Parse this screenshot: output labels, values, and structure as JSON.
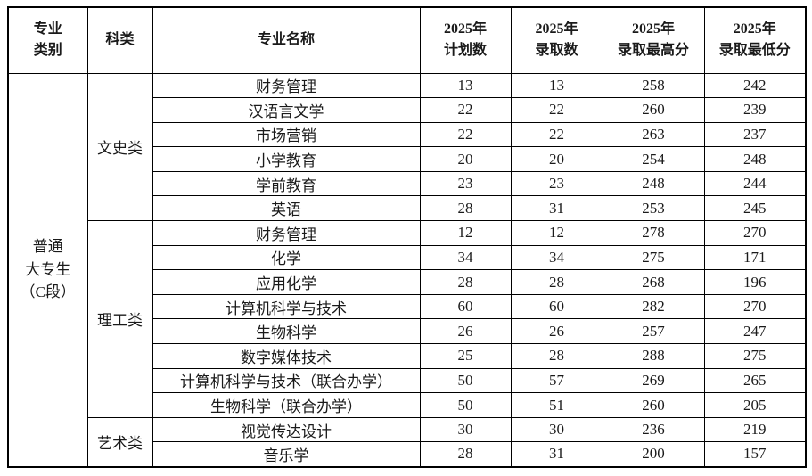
{
  "table": {
    "headers": {
      "category": "专业\n类别",
      "subject": "科类",
      "major": "专业名称",
      "plan": "2025年\n计划数",
      "admitted": "2025年\n录取数",
      "max_score": "2025年\n录取最高分",
      "min_score": "2025年\n录取最低分"
    },
    "category_cell": "普通\n大专生\n（C段）",
    "groups": [
      {
        "subject": "文史类",
        "rows": [
          {
            "major": "财务管理",
            "plan": "13",
            "admitted": "13",
            "max_score": "258",
            "min_score": "242"
          },
          {
            "major": "汉语言文学",
            "plan": "22",
            "admitted": "22",
            "max_score": "260",
            "min_score": "239"
          },
          {
            "major": "市场营销",
            "plan": "22",
            "admitted": "22",
            "max_score": "263",
            "min_score": "237"
          },
          {
            "major": "小学教育",
            "plan": "20",
            "admitted": "20",
            "max_score": "254",
            "min_score": "248"
          },
          {
            "major": "学前教育",
            "plan": "23",
            "admitted": "23",
            "max_score": "248",
            "min_score": "244"
          },
          {
            "major": "英语",
            "plan": "28",
            "admitted": "31",
            "max_score": "253",
            "min_score": "245"
          }
        ]
      },
      {
        "subject": "理工类",
        "rows": [
          {
            "major": "财务管理",
            "plan": "12",
            "admitted": "12",
            "max_score": "278",
            "min_score": "270"
          },
          {
            "major": "化学",
            "plan": "34",
            "admitted": "34",
            "max_score": "275",
            "min_score": "171"
          },
          {
            "major": "应用化学",
            "plan": "28",
            "admitted": "28",
            "max_score": "268",
            "min_score": "196"
          },
          {
            "major": "计算机科学与技术",
            "plan": "60",
            "admitted": "60",
            "max_score": "282",
            "min_score": "270"
          },
          {
            "major": "生物科学",
            "plan": "26",
            "admitted": "26",
            "max_score": "257",
            "min_score": "247"
          },
          {
            "major": "数字媒体技术",
            "plan": "25",
            "admitted": "28",
            "max_score": "288",
            "min_score": "275"
          },
          {
            "major": "计算机科学与技术（联合办学）",
            "plan": "50",
            "admitted": "57",
            "max_score": "269",
            "min_score": "265"
          },
          {
            "major": "生物科学（联合办学）",
            "plan": "50",
            "admitted": "51",
            "max_score": "260",
            "min_score": "205"
          }
        ]
      },
      {
        "subject": "艺术类",
        "rows": [
          {
            "major": "视觉传达设计",
            "plan": "30",
            "admitted": "30",
            "max_score": "236",
            "min_score": "219"
          },
          {
            "major": "音乐学",
            "plan": "28",
            "admitted": "31",
            "max_score": "200",
            "min_score": "157"
          }
        ]
      }
    ]
  },
  "colors": {
    "border": "#000000",
    "text": "#1a1a1a",
    "background": "#ffffff"
  }
}
